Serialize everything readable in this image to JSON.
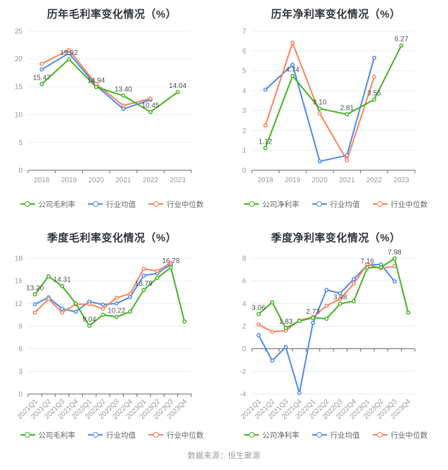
{
  "page": {
    "footer": "数据来源：恒生聚源"
  },
  "colors": {
    "company": "#43b320",
    "industry_mean": "#4f87f0",
    "industry_median": "#f9825c",
    "grid": "#e8eef5",
    "axis": "#5f6368",
    "tick_label": "#999999",
    "value_label": "#4d4d4d",
    "title": "#32353c",
    "legend_text": "#666666"
  },
  "chart_data": [
    {
      "type": "line",
      "title": "历年毛利率变化情况（%）",
      "categories": [
        "2018",
        "2019",
        "2020",
        "2021",
        "2022",
        "2023"
      ],
      "yticks": [
        0,
        5,
        10,
        15,
        20,
        25
      ],
      "ylim": [
        0,
        25
      ],
      "grid": true,
      "legend_position": "bottom",
      "x_rotate": false,
      "series": [
        {
          "name": "公司毛利率",
          "color": "#43b320",
          "values": [
            15.47,
            19.92,
            14.94,
            13.4,
            10.45,
            14.04
          ],
          "point_labels": [
            "15.47",
            "19.92",
            "14.94",
            "13.40",
            "10.45",
            "14.04"
          ]
        },
        {
          "name": "行业均值",
          "color": "#4f87f0",
          "values": [
            18.1,
            21.0,
            15.2,
            11.0,
            12.65,
            null
          ]
        },
        {
          "name": "行业中位数",
          "color": "#f9825c",
          "values": [
            19.1,
            21.6,
            15.5,
            11.6,
            12.85,
            null
          ]
        }
      ]
    },
    {
      "type": "line",
      "title": "历年净利率变化情况（%）",
      "categories": [
        "2018",
        "2019",
        "2020",
        "2021",
        "2022",
        "2023"
      ],
      "yticks": [
        0,
        1,
        2,
        3,
        4,
        5,
        6,
        7
      ],
      "ylim": [
        0,
        7
      ],
      "grid": true,
      "legend_position": "bottom",
      "x_rotate": false,
      "series": [
        {
          "name": "公司净利率",
          "color": "#43b320",
          "values": [
            1.12,
            4.74,
            3.1,
            2.81,
            3.55,
            6.27
          ],
          "point_labels": [
            "1.12",
            "4.74",
            "3.10",
            "2.81",
            "3.55",
            "6.27"
          ]
        },
        {
          "name": "行业均值",
          "color": "#4f87f0",
          "values": [
            4.05,
            5.3,
            0.45,
            0.75,
            5.65,
            null
          ]
        },
        {
          "name": "行业中位数",
          "color": "#f9825c",
          "values": [
            2.25,
            6.4,
            2.85,
            0.5,
            4.7,
            null
          ]
        }
      ]
    },
    {
      "type": "line",
      "title": "季度毛利率变化情况（%）",
      "categories": [
        "2021Q1",
        "2021Q2",
        "2021Q3",
        "2021Q4",
        "2022Q1",
        "2022Q2",
        "2022Q3",
        "2022Q4",
        "2023Q1",
        "2023Q2",
        "2023Q3",
        "2023Q4"
      ],
      "yticks": [
        0,
        3,
        6,
        9,
        12,
        15,
        18
      ],
      "ylim": [
        0,
        18
      ],
      "grid": true,
      "legend_position": "bottom",
      "x_rotate": true,
      "series": [
        {
          "name": "公司毛利率",
          "color": "#43b320",
          "values": [
            13.2,
            15.6,
            14.31,
            12.0,
            9.04,
            10.5,
            10.22,
            10.9,
            13.79,
            15.4,
            16.78,
            9.6
          ],
          "point_labels": [
            "13.20",
            null,
            "14.31",
            null,
            "9.04",
            null,
            "10.22",
            null,
            "13.79",
            null,
            "16.78",
            null
          ]
        },
        {
          "name": "行业均值",
          "color": "#4f87f0",
          "values": [
            11.9,
            12.8,
            11.3,
            10.9,
            12.25,
            11.85,
            12.0,
            12.85,
            15.7,
            16.0,
            17.2,
            null
          ]
        },
        {
          "name": "行业中位数",
          "color": "#f9825c",
          "values": [
            10.8,
            12.6,
            10.8,
            11.9,
            11.9,
            11.3,
            12.75,
            13.3,
            16.6,
            16.3,
            17.4,
            null
          ]
        }
      ]
    },
    {
      "type": "line",
      "title": "季度净利率变化情况（%）",
      "categories": [
        "2021Q1",
        "2021Q2",
        "2021Q3",
        "2021Q4",
        "2022Q1",
        "2022Q2",
        "2022Q3",
        "2022Q4",
        "2023Q1",
        "2023Q2",
        "2023Q3",
        "2023Q4"
      ],
      "yticks": [
        -4,
        -2,
        0,
        2,
        4,
        6,
        8
      ],
      "ylim": [
        -4,
        8
      ],
      "grid": true,
      "legend_position": "bottom",
      "x_rotate": true,
      "series": [
        {
          "name": "公司净利率",
          "color": "#43b320",
          "values": [
            3.06,
            4.1,
            1.83,
            2.45,
            2.73,
            2.65,
            3.98,
            4.2,
            7.16,
            7.2,
            7.98,
            3.2
          ],
          "point_labels": [
            "3.06",
            null,
            "1.83",
            null,
            "2.73",
            null,
            "3.98",
            null,
            "7.16",
            null,
            "7.98",
            null
          ]
        },
        {
          "name": "行业均值",
          "color": "#4f87f0",
          "values": [
            1.2,
            -1.05,
            0.15,
            -3.9,
            2.3,
            5.2,
            4.9,
            6.15,
            7.4,
            7.45,
            5.95,
            null
          ]
        },
        {
          "name": "行业中位数",
          "color": "#f9825c",
          "values": [
            2.15,
            1.5,
            1.6,
            2.5,
            2.8,
            3.8,
            4.4,
            5.75,
            7.45,
            7.1,
            7.3,
            null
          ]
        }
      ]
    }
  ]
}
